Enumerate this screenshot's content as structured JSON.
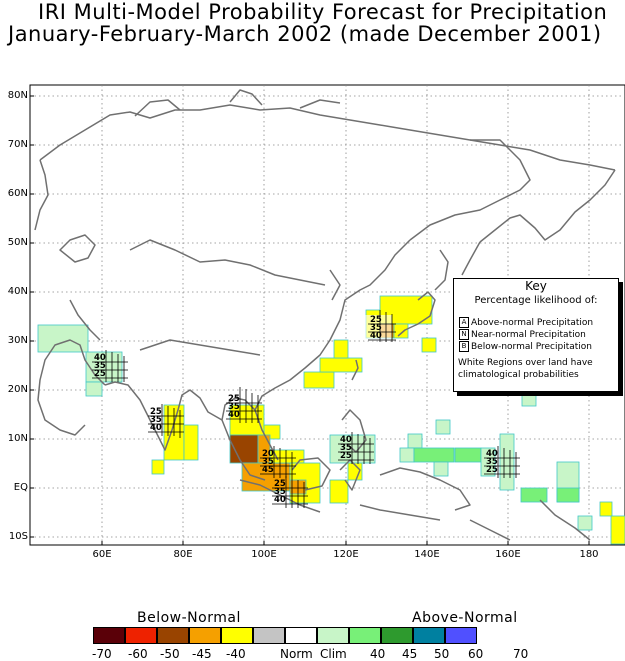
{
  "title_line1": "IRI Multi-Model Probability Forecast for Precipitation",
  "title_line2": "January-February-March 2002 (made December 2001)",
  "lat_labels": [
    "80N",
    "70N",
    "60N",
    "50N",
    "40N",
    "30N",
    "20N",
    "10N",
    "EQ",
    "10S"
  ],
  "lon_labels": [
    "60E",
    "80E",
    "100E",
    "120E",
    "140E",
    "160E",
    "180"
  ],
  "key": {
    "title": "Key",
    "subtitle": "Percentage likelihood of:",
    "rows": [
      {
        "box": "A",
        "label": "Above-normal Precipitation"
      },
      {
        "box": "N",
        "label": "Near-normal Precipitation"
      },
      {
        "box": "B",
        "label": "Below-normal Precipitation"
      }
    ],
    "note_line1": "White Regions over land have",
    "note_line2": "climatological probabilities"
  },
  "colorbar": {
    "below_label": "Below-Normal",
    "above_label": "Above-Normal",
    "colors": [
      "#5a0008",
      "#ee2200",
      "#994400",
      "#f5a000",
      "#ffff00",
      "#c4c4c4",
      "#ffffff",
      "#c8f5c8",
      "#78f078",
      "#2e9a2e",
      "#0080a0",
      "#5050ff"
    ],
    "ticks": [
      "-70",
      "-60",
      "-50",
      "-45",
      "-40",
      "Norm",
      "Clim",
      "40",
      "45",
      "50",
      "60",
      "70"
    ]
  },
  "map_labels": [
    {
      "a": "25",
      "n": "35",
      "b": "40"
    },
    {
      "a": "40",
      "n": "35",
      "b": "25"
    },
    {
      "a": "25",
      "n": "35",
      "b": "40"
    },
    {
      "a": "25",
      "n": "35",
      "b": "40"
    },
    {
      "a": "20",
      "n": "35",
      "b": "45"
    },
    {
      "a": "25",
      "n": "35",
      "b": "40"
    },
    {
      "a": "40",
      "n": "35",
      "b": "25"
    },
    {
      "a": "40",
      "n": "35",
      "b": "25"
    }
  ],
  "colors": {
    "coast": "#707070",
    "grid": "#888888",
    "cell_outline": "#40c8c8"
  }
}
